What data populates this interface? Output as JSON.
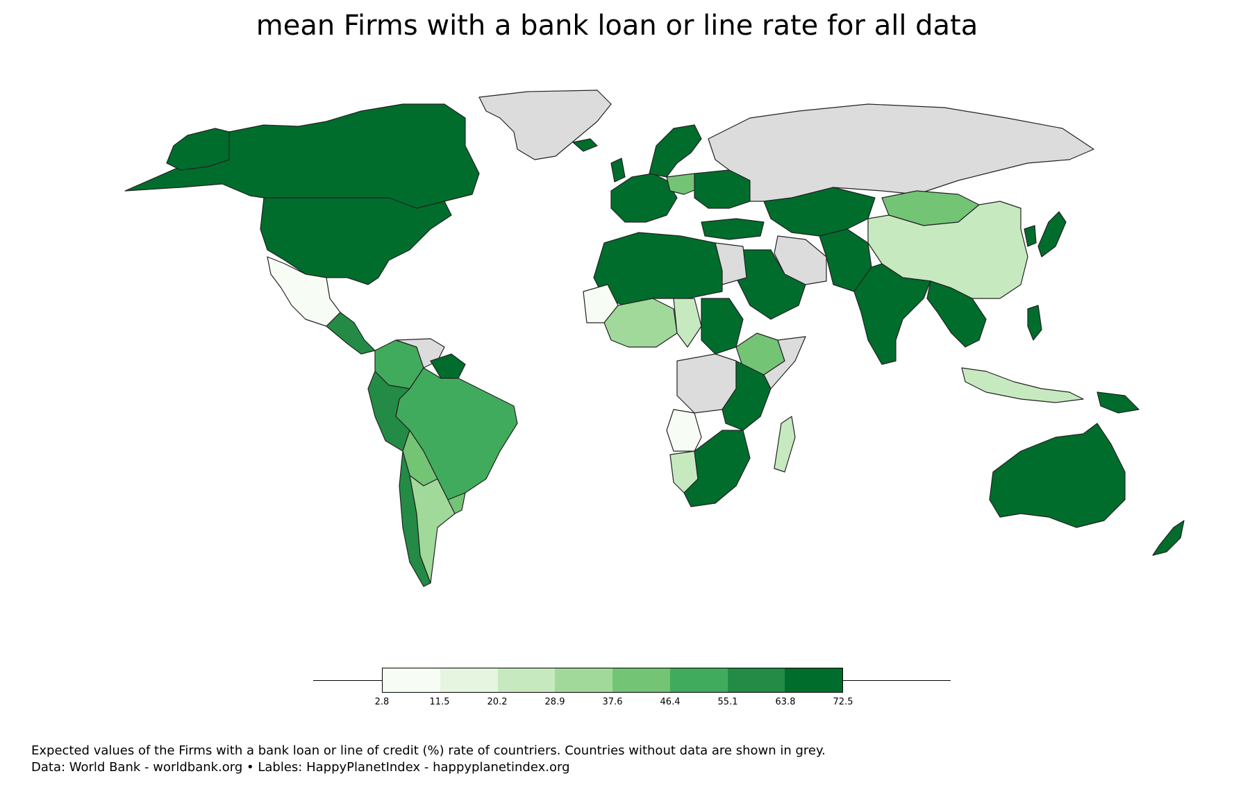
{
  "title": "mean Firms with a bank loan or line rate for all data",
  "legend": {
    "colors": [
      "#f7fcf5",
      "#e5f5e0",
      "#c7e9c0",
      "#a1d99b",
      "#74c476",
      "#41ab5d",
      "#238b45",
      "#006d2c"
    ],
    "ticks": [
      "2.8",
      "11.5",
      "20.2",
      "28.9",
      "37.6",
      "46.4",
      "55.1",
      "63.8",
      "72.5"
    ]
  },
  "colors": {
    "no_data": "#dcdcdc",
    "c1": "#f7fcf5",
    "c2": "#e5f5e0",
    "c3": "#c7e9c0",
    "c4": "#a1d99b",
    "c5": "#74c476",
    "c6": "#41ab5d",
    "c7": "#238b45",
    "c8": "#006d2c"
  },
  "caption": {
    "line1": "Expected values of the Firms with a bank loan or line of credit (%) rate of countriers. Countries without data are shown in grey.",
    "line2": "Data: World Bank - worldbank.org • Lables: HappyPlanetIndex - happyplanetindex.org"
  }
}
